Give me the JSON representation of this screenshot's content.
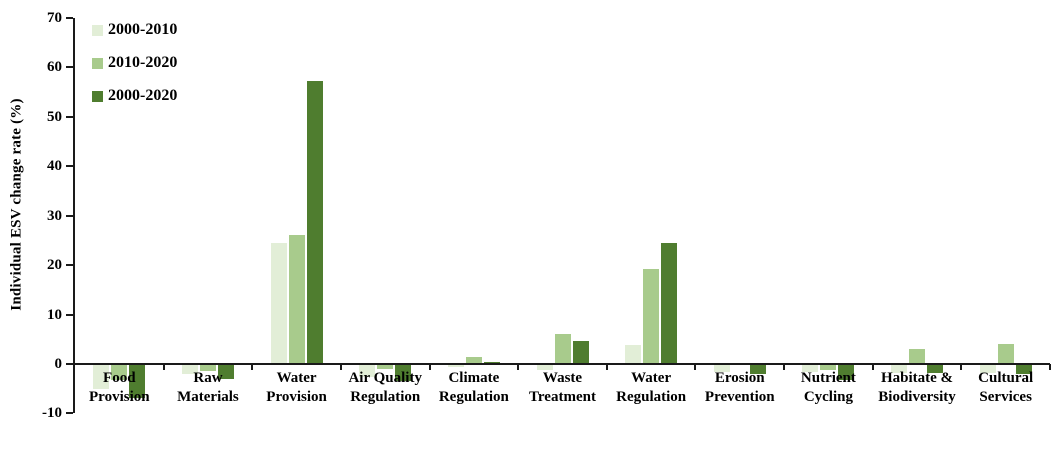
{
  "chart_data": {
    "type": "bar",
    "title": "",
    "xlabel": "",
    "ylabel": "Individual ESV change rate (%)",
    "ylim": [
      -10,
      70
    ],
    "y_ticks": [
      70,
      60,
      50,
      40,
      30,
      20,
      10,
      0,
      -10
    ],
    "grid": false,
    "legend_position": "top-left-inside",
    "categories": [
      "Food Provision",
      "Raw Materials",
      "Water Provision",
      "Air Quality Regulation",
      "Climate Regulation",
      "Waste Treatment",
      "Water Regulation",
      "Erosion Prevention",
      "Nutrient Cycling",
      "Habitate & Biodiversity",
      "Cultural Services"
    ],
    "category_label_lines": [
      [
        "Food",
        "Provision"
      ],
      [
        "Raw",
        "Materials"
      ],
      [
        "Water",
        "Provision"
      ],
      [
        "Air Quality",
        "Regulation"
      ],
      [
        "Climate",
        "Regulation"
      ],
      [
        "Waste",
        "Treatment"
      ],
      [
        "Water",
        "Regulation"
      ],
      [
        "Erosion",
        "Prevention"
      ],
      [
        "Nutrient",
        "Cycling"
      ],
      [
        "Habitate &",
        "Biodiversity"
      ],
      [
        "Cultural",
        "Services"
      ]
    ],
    "series": [
      {
        "name": "2000-2010",
        "color": "#e2eed7",
        "values": [
          -5.0,
          -2.0,
          24.5,
          -2.7,
          -0.7,
          -1.2,
          3.9,
          -1.6,
          -1.7,
          -1.8,
          -1.9
        ]
      },
      {
        "name": "2010-2020",
        "color": "#a8cb8c",
        "values": [
          -3.2,
          -1.4,
          26.0,
          -1.0,
          1.5,
          6.0,
          19.2,
          -0.3,
          -1.2,
          3.0,
          4.0
        ]
      },
      {
        "name": "2000-2020",
        "color": "#4f7d2f",
        "values": [
          -6.9,
          -3.0,
          57.2,
          -3.4,
          0.5,
          4.7,
          24.5,
          -2.1,
          -3.3,
          -1.9,
          -2.1
        ]
      }
    ],
    "axis_color": "#1a1a1a",
    "background_color": "#ffffff"
  }
}
